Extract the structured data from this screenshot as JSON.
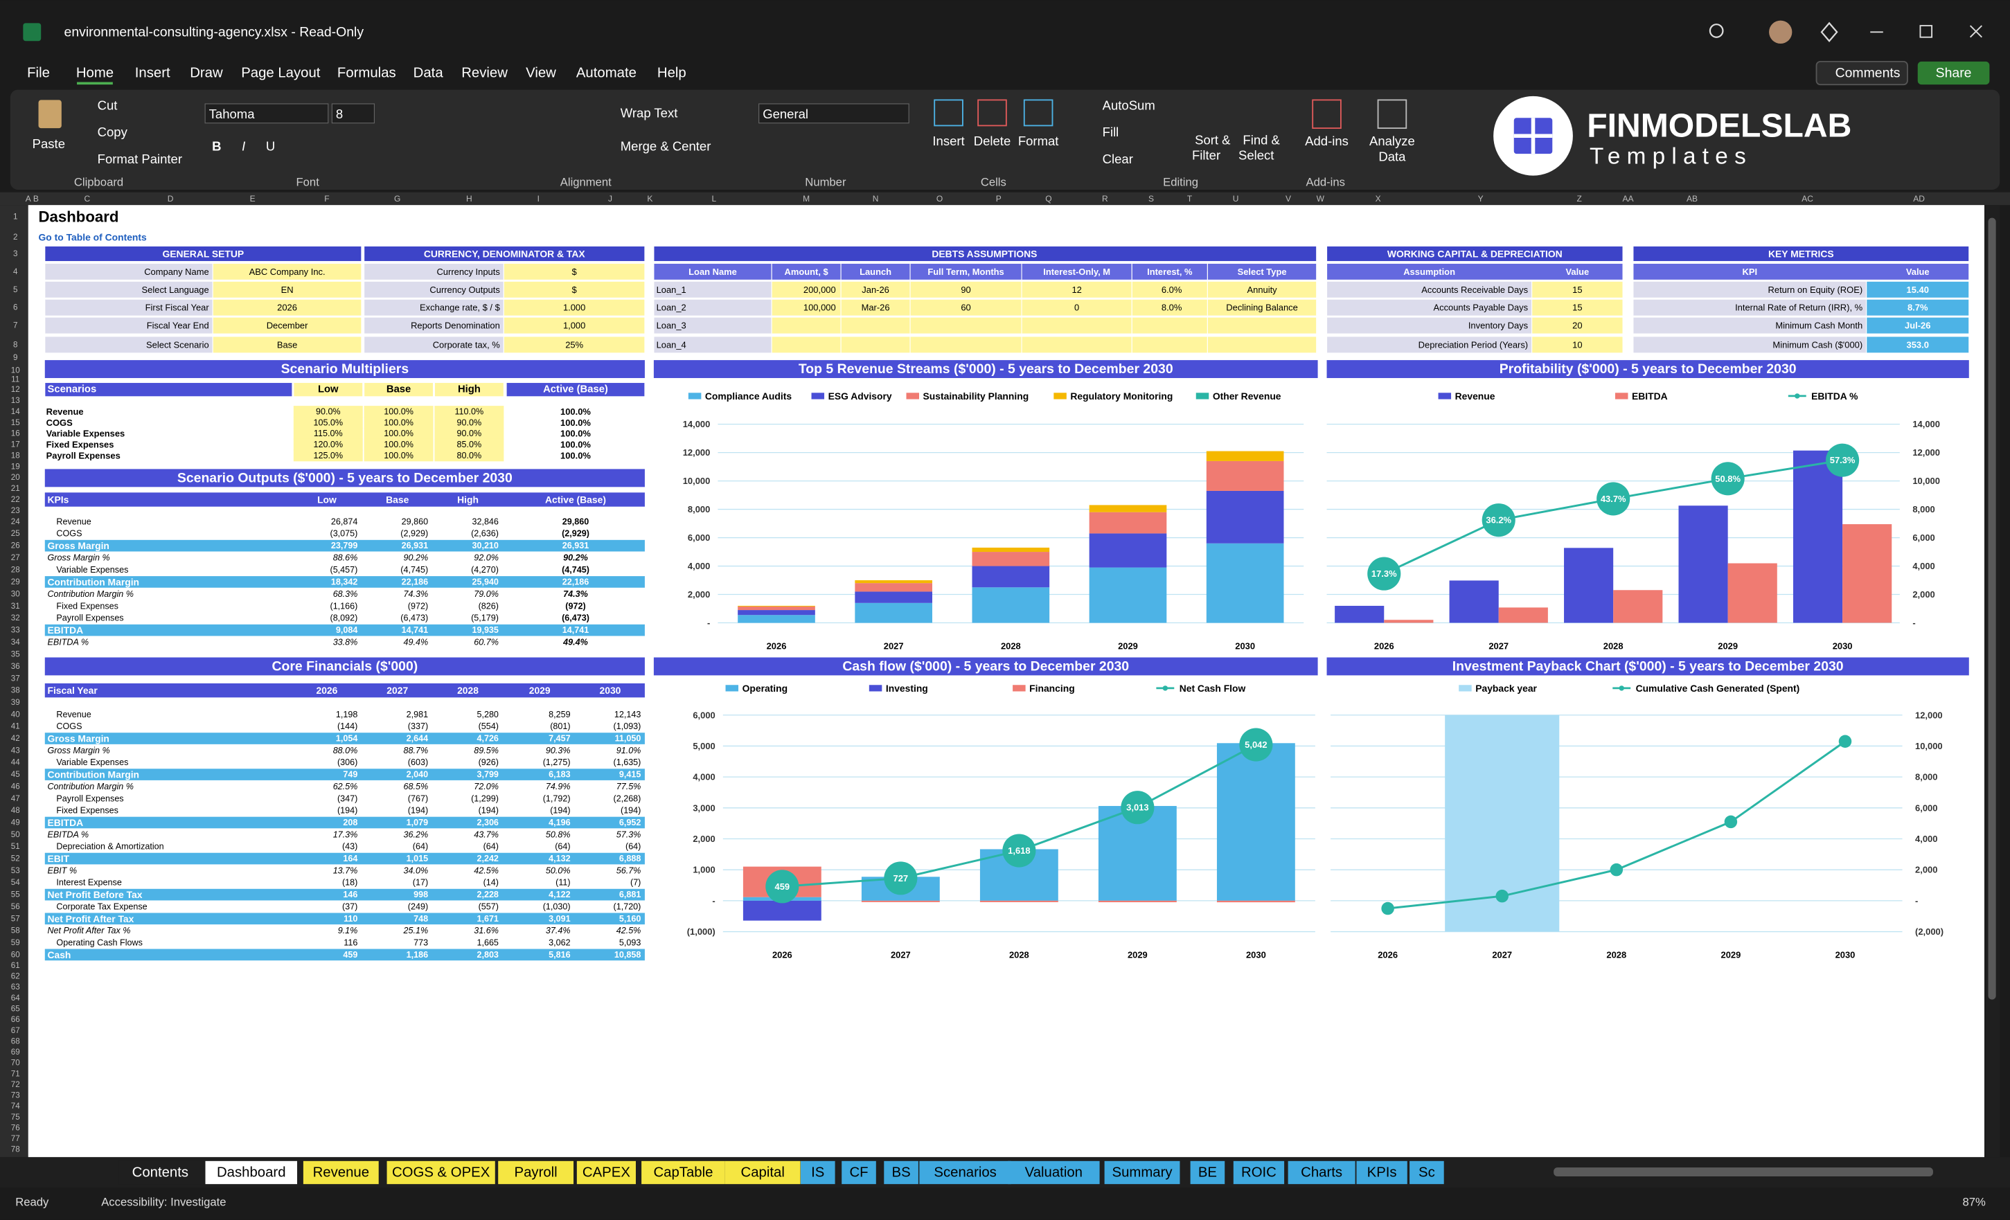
{
  "window": {
    "title": "environmental-consulting-agency.xlsx - Read-Only"
  },
  "menu": [
    "File",
    "Home",
    "Insert",
    "Draw",
    "Page Layout",
    "Formulas",
    "Data",
    "Review",
    "View",
    "Automate",
    "Help"
  ],
  "top_buttons": [
    "Comments",
    "Share"
  ],
  "ribbon": {
    "items": [
      "Paste",
      "Cut",
      "Copy",
      "Format Painter",
      "Tahoma",
      "8",
      "Wrap Text",
      "Merge & Center",
      "General",
      "Insert",
      "Delete",
      "Format",
      "AutoSum",
      "Fill",
      "Clear",
      "Sort &",
      "Filter",
      "Find &",
      "Select",
      "Add-ins",
      "Analyze",
      "Data"
    ],
    "font_buttons": [
      "B",
      "I",
      "U"
    ],
    "groups": [
      "Clipboard",
      "Font",
      "Alignment",
      "Number",
      "Cells",
      "Editing",
      "Add-ins"
    ]
  },
  "logo": {
    "brand": "FINMODELSLAB",
    "tagline": "Templates"
  },
  "columns": [
    "A",
    "B",
    "C",
    "D",
    "E",
    "F",
    "G",
    "H",
    "I",
    "J",
    "K",
    "L",
    "M",
    "N",
    "O",
    "P",
    "Q",
    "R",
    "S",
    "T",
    "U",
    "V",
    "W",
    "X",
    "Y",
    "Z",
    "AA",
    "AB",
    "AC",
    "AD"
  ],
  "rows": [
    1,
    2,
    3,
    4,
    5,
    6,
    7,
    8,
    9,
    10,
    11,
    12,
    13,
    14,
    15,
    16,
    17,
    18,
    19,
    20,
    21,
    22,
    23,
    24,
    25,
    26,
    27,
    28,
    29,
    30,
    31,
    32,
    33,
    34,
    35,
    36,
    37,
    38,
    39,
    40,
    41,
    42,
    43,
    44,
    45,
    46,
    47,
    48,
    49,
    50,
    51,
    52,
    53,
    54,
    55,
    56,
    57,
    58,
    59,
    60,
    61,
    62,
    63,
    64,
    65,
    66,
    67,
    68,
    69,
    70,
    71,
    72,
    73,
    74,
    75,
    76,
    77,
    78
  ],
  "sheet": {
    "title": "Dashboard",
    "link": "Go to Table of Contents"
  },
  "general_setup": {
    "title": "GENERAL SETUP",
    "rows": [
      [
        "Company Name",
        "ABC Company Inc."
      ],
      [
        "Select Language",
        "EN"
      ],
      [
        "First Fiscal Year",
        "2026"
      ],
      [
        "Fiscal Year End",
        "December"
      ],
      [
        "Select Scenario",
        "Base"
      ]
    ]
  },
  "currency": {
    "title": "CURRENCY, DENOMINATOR & TAX",
    "rows": [
      [
        "Currency Inputs",
        "$"
      ],
      [
        "Currency Outputs",
        "$"
      ],
      [
        "Exchange rate, $ / $",
        "1.000"
      ],
      [
        "Reports Denomination",
        "1,000"
      ],
      [
        "Corporate tax, %",
        "25%"
      ]
    ]
  },
  "debts": {
    "title": "DEBTS ASSUMPTIONS",
    "columns": [
      "Loan Name",
      "Amount, $",
      "Launch",
      "Full Term, Months",
      "Interest-Only, M",
      "Interest, %",
      "Select Type"
    ],
    "rows": [
      [
        "Loan_1",
        "200,000",
        "Jan-26",
        "90",
        "12",
        "6.0%",
        "Annuity"
      ],
      [
        "Loan_2",
        "100,000",
        "Mar-26",
        "60",
        "0",
        "8.0%",
        "Declining Balance"
      ],
      [
        "Loan_3",
        null,
        null,
        null,
        null,
        null,
        null
      ],
      [
        "Loan_4",
        null,
        null,
        null,
        null,
        null,
        null
      ]
    ]
  },
  "working_capital": {
    "title": "WORKING CAPITAL & DEPRECIATION",
    "columns": [
      "Assumption",
      "Value"
    ],
    "rows": [
      [
        "Accounts Receivable Days",
        "15"
      ],
      [
        "Accounts Payable Days",
        "15"
      ],
      [
        "Inventory Days",
        "20"
      ],
      [
        "Depreciation Period (Years)",
        "10"
      ]
    ]
  },
  "key_metrics": {
    "title": "KEY METRICS",
    "columns": [
      "KPI",
      "Value"
    ],
    "rows": [
      [
        "Return on Equity (ROE)",
        "15.40"
      ],
      [
        "Internal Rate of Return (IRR), %",
        "8.7%"
      ],
      [
        "Minimum Cash Month",
        "Jul-26"
      ],
      [
        "Minimum Cash ($'000)",
        "353.0"
      ]
    ]
  },
  "scenario_multipliers": {
    "title": "Scenario Multipliers",
    "columns": [
      "Scenarios",
      "Low",
      "Base",
      "High",
      "Active (Base)"
    ],
    "rows": [
      [
        "Revenue",
        "90.0%",
        "100.0%",
        "110.0%",
        "100.0%"
      ],
      [
        "COGS",
        "105.0%",
        "100.0%",
        "90.0%",
        "100.0%"
      ],
      [
        "Variable Expenses",
        "115.0%",
        "100.0%",
        "90.0%",
        "100.0%"
      ],
      [
        "Fixed Expenses",
        "120.0%",
        "100.0%",
        "85.0%",
        "100.0%"
      ],
      [
        "Payroll Expenses",
        "125.0%",
        "100.0%",
        "80.0%",
        "100.0%"
      ]
    ]
  },
  "scenario_outputs": {
    "title": "Scenario Outputs ($'000) - 5 years to December 2030",
    "columns": [
      "KPIs",
      "Low",
      "Base",
      "High",
      "Active (Base)"
    ],
    "rows": [
      [
        "Revenue",
        "26,874",
        "29,860",
        "32,846",
        "29,860"
      ],
      [
        "COGS",
        "(3,075)",
        "(2,929)",
        "(2,636)",
        "(2,929)"
      ],
      [
        "Gross Margin",
        "23,799",
        "26,931",
        "30,210",
        "26,931"
      ],
      [
        "Gross Margin %",
        "88.6%",
        "90.2%",
        "92.0%",
        "90.2%"
      ],
      [
        "Variable Expenses",
        "(5,457)",
        "(4,745)",
        "(4,270)",
        "(4,745)"
      ],
      [
        "Contribution Margin",
        "18,342",
        "22,186",
        "25,940",
        "22,186"
      ],
      [
        "Contribution Margin %",
        "68.3%",
        "74.3%",
        "79.0%",
        "74.3%"
      ],
      [
        "Fixed Expenses",
        "(1,166)",
        "(972)",
        "(826)",
        "(972)"
      ],
      [
        "Payroll Expenses",
        "(8,092)",
        "(6,473)",
        "(5,179)",
        "(6,473)"
      ],
      [
        "EBITDA",
        "9,084",
        "14,741",
        "19,935",
        "14,741"
      ],
      [
        "EBITDA %",
        "33.8%",
        "49.4%",
        "60.7%",
        "49.4%"
      ]
    ]
  },
  "core_financials": {
    "title": "Core Financials ($'000)",
    "columns": [
      "Fiscal Year",
      "2026",
      "2027",
      "2028",
      "2029",
      "2030"
    ],
    "rows": [
      [
        "Revenue",
        "1,198",
        "2,981",
        "5,280",
        "8,259",
        "12,143"
      ],
      [
        "COGS",
        "(144)",
        "(337)",
        "(554)",
        "(801)",
        "(1,093)"
      ],
      [
        "Gross Margin",
        "1,054",
        "2,644",
        "4,726",
        "7,457",
        "11,050"
      ],
      [
        "Gross Margin %",
        "88.0%",
        "88.7%",
        "89.5%",
        "90.3%",
        "91.0%"
      ],
      [
        "Variable Expenses",
        "(306)",
        "(603)",
        "(926)",
        "(1,275)",
        "(1,635)"
      ],
      [
        "Contribution Margin",
        "749",
        "2,040",
        "3,799",
        "6,183",
        "9,415"
      ],
      [
        "Contribution Margin %",
        "62.5%",
        "68.5%",
        "72.0%",
        "74.9%",
        "77.5%"
      ],
      [
        "Payroll Expenses",
        "(347)",
        "(767)",
        "(1,299)",
        "(1,792)",
        "(2,268)"
      ],
      [
        "Fixed Expenses",
        "(194)",
        "(194)",
        "(194)",
        "(194)",
        "(194)"
      ],
      [
        "EBITDA",
        "208",
        "1,079",
        "2,306",
        "4,196",
        "6,952"
      ],
      [
        "EBITDA %",
        "17.3%",
        "36.2%",
        "43.7%",
        "50.8%",
        "57.3%"
      ],
      [
        "Depreciation & Amortization",
        "(43)",
        "(64)",
        "(64)",
        "(64)",
        "(64)"
      ],
      [
        "EBIT",
        "164",
        "1,015",
        "2,242",
        "4,132",
        "6,888"
      ],
      [
        "EBIT %",
        "13.7%",
        "34.0%",
        "42.5%",
        "50.0%",
        "56.7%"
      ],
      [
        "Interest Expense",
        "(18)",
        "(17)",
        "(14)",
        "(11)",
        "(7)"
      ],
      [
        "Net Profit Before Tax",
        "146",
        "998",
        "2,228",
        "4,122",
        "6,881"
      ],
      [
        "Corporate Tax Expense",
        "(37)",
        "(249)",
        "(557)",
        "(1,030)",
        "(1,720)"
      ],
      [
        "Net Profit After Tax",
        "110",
        "748",
        "1,671",
        "3,091",
        "5,160"
      ],
      [
        "Net Profit After Tax %",
        "9.1%",
        "25.1%",
        "31.6%",
        "37.4%",
        "42.5%"
      ],
      [
        "Operating Cash Flows",
        "116",
        "773",
        "1,665",
        "3,062",
        "5,093"
      ],
      [
        "Cash",
        "459",
        "1,186",
        "2,803",
        "5,816",
        "10,858"
      ]
    ]
  },
  "chart_data": [
    {
      "type": "bar",
      "title": "Top 5 Revenue Streams ($'000) - 5 years to December 2030",
      "stacked": true,
      "grid": true,
      "axis_side": "left",
      "categories": [
        "2026",
        "2027",
        "2028",
        "2029",
        "2030"
      ],
      "series": [
        {
          "name": "Compliance Audits",
          "kind": "bar",
          "color": "#4db3e6",
          "values": [
            550,
            1400,
            2500,
            3900,
            5600
          ]
        },
        {
          "name": "ESG Advisory",
          "kind": "bar",
          "color": "#4a4fd6",
          "values": [
            350,
            800,
            1500,
            2400,
            3700
          ]
        },
        {
          "name": "Sustainability Planning",
          "kind": "bar",
          "color": "#f07b72",
          "values": [
            250,
            600,
            1000,
            1500,
            2100
          ]
        },
        {
          "name": "Regulatory Monitoring",
          "kind": "bar",
          "color": "#f5b800",
          "values": [
            50,
            200,
            300,
            500,
            700
          ]
        },
        {
          "name": "Other Revenue",
          "kind": "bar",
          "color": "#2ab5a5",
          "values": [
            0,
            0,
            0,
            0,
            0
          ]
        }
      ],
      "ylim": [
        0,
        14000
      ],
      "yticks": [
        {
          "value": 0,
          "label": "-"
        },
        {
          "value": 2000,
          "label": "2,000"
        },
        {
          "value": 4000,
          "label": "4,000"
        },
        {
          "value": 6000,
          "label": "6,000"
        },
        {
          "value": 8000,
          "label": "8,000"
        },
        {
          "value": 10000,
          "label": "10,000"
        },
        {
          "value": 12000,
          "label": "12,000"
        },
        {
          "value": 14000,
          "label": "14,000"
        }
      ]
    },
    {
      "type": "combo",
      "title": "Profitability ($'000) - 5 years to December 2030",
      "stacked": false,
      "grid": true,
      "axis_side": "right",
      "categories": [
        "2026",
        "2027",
        "2028",
        "2029",
        "2030"
      ],
      "series": [
        {
          "name": "Revenue",
          "kind": "bar",
          "color": "#4a4fd6",
          "values": [
            1198,
            2981,
            5280,
            8259,
            12143
          ]
        },
        {
          "name": "EBITDA",
          "kind": "bar",
          "color": "#f07b72",
          "values": [
            208,
            1079,
            2306,
            4196,
            6952
          ]
        },
        {
          "name": "EBITDA %",
          "kind": "line",
          "axis": "y2",
          "color": "#2ab5a5",
          "values": [
            17.3,
            36.2,
            43.7,
            50.8,
            57.3
          ],
          "value_labels": [
            "17.3%",
            "36.2%",
            "43.7%",
            "50.8%",
            "57.3%"
          ]
        }
      ],
      "ylim": [
        0,
        14000
      ],
      "yticks": [
        {
          "value": 0,
          "label": "-"
        },
        {
          "value": 2000,
          "label": "2,000"
        },
        {
          "value": 4000,
          "label": "4,000"
        },
        {
          "value": 6000,
          "label": "6,000"
        },
        {
          "value": 8000,
          "label": "8,000"
        },
        {
          "value": 10000,
          "label": "10,000"
        },
        {
          "value": 12000,
          "label": "12,000"
        },
        {
          "value": 14000,
          "label": "14,000"
        }
      ],
      "y2lim": [
        0,
        70
      ]
    },
    {
      "type": "combo",
      "title": "Cash flow ($'000) - 5 years to December 2030",
      "stacked": true,
      "grid": true,
      "axis_side": "left",
      "categories": [
        "2026",
        "2027",
        "2028",
        "2029",
        "2030"
      ],
      "series": [
        {
          "name": "Operating",
          "kind": "bar",
          "color": "#4db3e6",
          "values": [
            116,
            773,
            1665,
            3062,
            5093
          ]
        },
        {
          "name": "Investing",
          "kind": "bar",
          "color": "#4a4fd6",
          "values": [
            -643,
            0,
            0,
            0,
            0
          ]
        },
        {
          "name": "Financing",
          "kind": "bar",
          "color": "#f07b72",
          "values": [
            986,
            -46,
            -47,
            -49,
            -51
          ]
        },
        {
          "name": "Net Cash Flow",
          "kind": "line",
          "color": "#2ab5a5",
          "values": [
            459,
            727,
            1618,
            3013,
            5042
          ],
          "value_labels": [
            "459",
            "727",
            "1,618",
            "3,013",
            "5,042"
          ]
        }
      ],
      "ylim": [
        -1000,
        6000
      ],
      "yticks": [
        {
          "value": -1000,
          "label": "(1,000)"
        },
        {
          "value": 0,
          "label": "-"
        },
        {
          "value": 1000,
          "label": "1,000"
        },
        {
          "value": 2000,
          "label": "2,000"
        },
        {
          "value": 3000,
          "label": "3,000"
        },
        {
          "value": 4000,
          "label": "4,000"
        },
        {
          "value": 5000,
          "label": "5,000"
        },
        {
          "value": 6000,
          "label": "6,000"
        }
      ]
    },
    {
      "type": "combo",
      "title": "Investment Payback Chart ($'000) - 5 years to December 2030",
      "stacked": false,
      "grid": true,
      "axis_side": "right",
      "categories": [
        "2026",
        "2027",
        "2028",
        "2029",
        "2030"
      ],
      "series": [
        {
          "name": "Payback year",
          "kind": "bar",
          "axis": "y2",
          "color": "#a8dcf5",
          "values": [
            0,
            1,
            0,
            0,
            0
          ]
        },
        {
          "name": "Cumulative Cash Generated (Spent)",
          "kind": "line",
          "color": "#2ab5a5",
          "values": [
            -500,
            300,
            2000,
            5100,
            10300
          ]
        }
      ],
      "ylim": [
        -2000,
        12000
      ],
      "yticks": [
        {
          "value": -2000,
          "label": "(2,000)"
        },
        {
          "value": 0,
          "label": "-"
        },
        {
          "value": 2000,
          "label": "2,000"
        },
        {
          "value": 4000,
          "label": "4,000"
        },
        {
          "value": 6000,
          "label": "6,000"
        },
        {
          "value": 8000,
          "label": "8,000"
        },
        {
          "value": 10000,
          "label": "10,000"
        },
        {
          "value": 12000,
          "label": "12,000"
        }
      ],
      "y2lim": [
        0,
        1
      ]
    }
  ],
  "tabs": [
    "Contents",
    "Dashboard",
    "Revenue",
    "COGS & OPEX",
    "Payroll",
    "CAPEX",
    "CapTable",
    "Capital",
    "IS",
    "CF",
    "BS",
    "Scenarios",
    "Valuation",
    "Summary",
    "BE",
    "ROIC",
    "Charts",
    "KPIs",
    "Sc"
  ],
  "status": {
    "ready": "Ready",
    "accessibility": "Accessibility: Investigate",
    "zoom": "87%"
  }
}
